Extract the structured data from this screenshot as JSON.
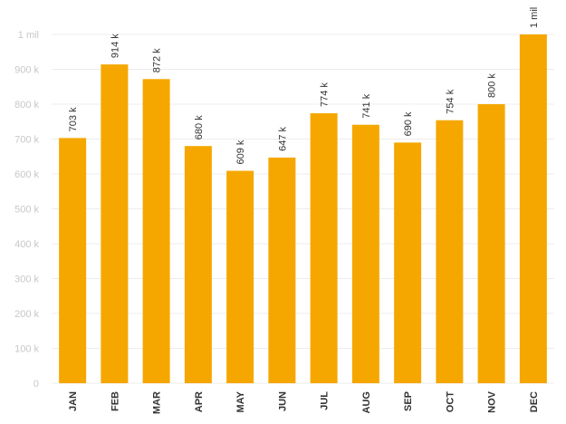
{
  "chart_data": {
    "type": "bar",
    "categories": [
      "JAN",
      "FEB",
      "MAR",
      "APR",
      "MAY",
      "JUN",
      "JUL",
      "AUG",
      "SEP",
      "OCT",
      "NOV",
      "DEC"
    ],
    "values": [
      703000,
      914000,
      872000,
      680000,
      609000,
      647000,
      774000,
      741000,
      690000,
      754000,
      800000,
      1000000
    ],
    "data_labels": [
      "703 k",
      "914 k",
      "872 k",
      "680 k",
      "609 k",
      "647 k",
      "774 k",
      "741 k",
      "690 k",
      "754 k",
      "800 k",
      "1 mil"
    ],
    "y_ticks": [
      {
        "value": 0,
        "label": "0"
      },
      {
        "value": 100000,
        "label": "100 k"
      },
      {
        "value": 200000,
        "label": "200 k"
      },
      {
        "value": 300000,
        "label": "300 k"
      },
      {
        "value": 400000,
        "label": "400 k"
      },
      {
        "value": 500000,
        "label": "500 k"
      },
      {
        "value": 600000,
        "label": "600 k"
      },
      {
        "value": 700000,
        "label": "700 k"
      },
      {
        "value": 800000,
        "label": "800 k"
      },
      {
        "value": 900000,
        "label": "900  k"
      },
      {
        "value": 1000000,
        "label": "1 mil"
      }
    ],
    "ylim": [
      0,
      1000000
    ],
    "title": "",
    "xlabel": "",
    "ylabel": "",
    "grid": true,
    "legend": "none",
    "bar_color": "#f5a700"
  }
}
